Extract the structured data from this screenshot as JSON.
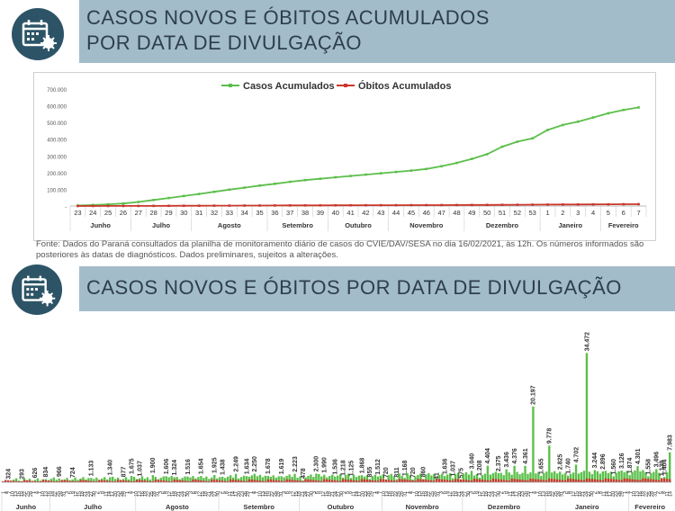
{
  "header": {
    "title_line1": "CASOS NOVOS E ÓBITOS ACUMULADOS",
    "title_line2": "POR DATA DE DIVULGAÇÃO",
    "icon": "calendar-virus-icon"
  },
  "section2": {
    "title": "CASOS NOVOS E ÓBITOS POR DATA DE DIVULGAÇÃO",
    "icon": "calendar-virus-icon"
  },
  "source_note": "Fonte: Dados do Paraná consultados da planilha de monitoramento diário de casos do CVIE/DAV/SESA no dia 16/02/2021, às 12h. Os números informados são posteriores às datas de diagnósticos. Dados preliminares, sujeitos a alterações.",
  "colors": {
    "green": "#5cbf4a",
    "red": "#c9372c",
    "band": "#a3bcca",
    "title": "#2d3f4a"
  },
  "chart_data": [
    {
      "type": "line",
      "legend_position": "top-center",
      "ylim": [
        0,
        700000
      ],
      "yticks": [
        "700.000",
        "600.000",
        "500.000",
        "400.000",
        "300.000",
        "200.000",
        "100.000",
        "-"
      ],
      "x": [
        "23",
        "24",
        "25",
        "26",
        "27",
        "28",
        "29",
        "30",
        "31",
        "32",
        "33",
        "34",
        "35",
        "36",
        "37",
        "38",
        "39",
        "40",
        "41",
        "42",
        "43",
        "44",
        "45",
        "46",
        "47",
        "48",
        "49",
        "50",
        "51",
        "52",
        "53",
        "1",
        "2",
        "3",
        "4",
        "5",
        "6",
        "7"
      ],
      "months": [
        {
          "label": "Junho",
          "from": 0,
          "to": 3
        },
        {
          "label": "Julho",
          "from": 4,
          "to": 7
        },
        {
          "label": "Agosto",
          "from": 8,
          "to": 12
        },
        {
          "label": "Setembro",
          "from": 13,
          "to": 16
        },
        {
          "label": "Outubro",
          "from": 17,
          "to": 20
        },
        {
          "label": "Novembro",
          "from": 21,
          "to": 25
        },
        {
          "label": "Dezembro",
          "from": 26,
          "to": 30
        },
        {
          "label": "Janeiro",
          "from": 31,
          "to": 34
        },
        {
          "label": "Fevereiro",
          "from": 35,
          "to": 37
        }
      ],
      "series": [
        {
          "name": "Casos Acumulados",
          "color": "#5cbf4a",
          "values": [
            3000,
            6000,
            10000,
            15000,
            24000,
            36000,
            48000,
            60000,
            72000,
            85000,
            98000,
            110000,
            122000,
            133000,
            145000,
            155000,
            163000,
            172000,
            180000,
            188000,
            196000,
            204000,
            212000,
            222000,
            238000,
            258000,
            282000,
            310000,
            355000,
            385000,
            405000,
            455000,
            485000,
            505000,
            530000,
            555000,
            575000,
            590000
          ]
        },
        {
          "name": "Óbitos Acumulados",
          "color": "#c9372c",
          "values": [
            100,
            200,
            300,
            400,
            600,
            800,
            1100,
            1400,
            1700,
            2000,
            2300,
            2600,
            2900,
            3200,
            3500,
            3800,
            4000,
            4200,
            4400,
            4600,
            4800,
            5000,
            5200,
            5400,
            5600,
            5900,
            6200,
            6600,
            7000,
            7500,
            8000,
            8500,
            9000,
            9400,
            9800,
            10200,
            10600,
            11000
          ]
        }
      ]
    },
    {
      "type": "bar",
      "ylim": [
        0,
        36000
      ],
      "months": [
        {
          "label": "Junho",
          "from": 0,
          "to": 17
        },
        {
          "label": "Julho",
          "from": 18,
          "to": 49
        },
        {
          "label": "Agosto",
          "from": 50,
          "to": 80
        },
        {
          "label": "Setembro",
          "from": 81,
          "to": 110
        },
        {
          "label": "Outubro",
          "from": 111,
          "to": 141
        },
        {
          "label": "Novembro",
          "from": 142,
          "to": 171
        },
        {
          "label": "Dezembro",
          "from": 172,
          "to": 202
        },
        {
          "label": "Janeiro",
          "from": 203,
          "to": 233
        },
        {
          "label": "Fevereiro",
          "from": 234,
          "to": 249
        }
      ],
      "day_ticks": [
        "1",
        "4",
        "7",
        "10",
        "13",
        "16",
        "19",
        "22",
        "25",
        "28",
        "1",
        "4",
        "7",
        "10",
        "13",
        "16",
        "19",
        "22",
        "25",
        "28",
        "31",
        "3",
        "6",
        "9",
        "12",
        "15",
        "18",
        "21",
        "24",
        "27",
        "30",
        "2",
        "5",
        "8",
        "11",
        "14",
        "17",
        "20",
        "23",
        "26",
        "29",
        "1",
        "4",
        "7",
        "10",
        "13",
        "16",
        "19",
        "22",
        "25",
        "28",
        "31",
        "3",
        "6",
        "9",
        "12",
        "15",
        "18",
        "21",
        "24",
        "27",
        "30",
        "3",
        "6",
        "9",
        "12",
        "15",
        "18",
        "21",
        "24",
        "27",
        "30",
        "2",
        "5",
        "8",
        "11",
        "14",
        "17",
        "20",
        "23",
        "26",
        "29",
        "1",
        "4",
        "7",
        "10",
        "13",
        "16",
        "19",
        "22",
        "25",
        "28",
        "31",
        "3",
        "6",
        "9",
        "12",
        "15",
        "18",
        "21",
        "24",
        "27",
        "30",
        "3",
        "6",
        "9",
        "12",
        "15",
        "18",
        "21",
        "24",
        "27",
        "30",
        "2",
        "5",
        "8",
        "11",
        "14",
        "17",
        "20",
        "23",
        "26",
        "29",
        "1",
        "4",
        "7",
        "10",
        "13",
        "16",
        "19",
        "22",
        "25",
        "28",
        "31",
        "1",
        "4",
        "7",
        "10",
        "13",
        "16",
        "19",
        "22",
        "25",
        "28",
        "31",
        "3",
        "6",
        "9",
        "12",
        "15",
        "18",
        "21",
        "24",
        "27",
        "30",
        "3",
        "6",
        "9",
        "12",
        "15",
        "18",
        "21",
        "24",
        "27",
        "30",
        "2",
        "5",
        "8",
        "11",
        "14",
        "17",
        "20",
        "23",
        "26",
        "29",
        "1",
        "4",
        "7",
        "10",
        "13",
        "16",
        "19",
        "22",
        "25",
        "28",
        "31",
        "3",
        "6",
        "9",
        "12",
        "15",
        "18",
        "21",
        "24",
        "27",
        "30",
        "2",
        "5",
        "8",
        "11",
        "14",
        "17",
        "20",
        "23",
        "26",
        "29",
        "1",
        "4",
        "7",
        "10",
        "13",
        "16",
        "19",
        "22",
        "25",
        "28",
        "31",
        "2",
        "5",
        "8",
        "11",
        "14"
      ],
      "series_names": [
        "Casos Novos",
        "Óbitos"
      ],
      "labeled_values": [
        {
          "i": 2,
          "v": "324"
        },
        {
          "i": 8,
          "v": "293"
        },
        {
          "i": 14,
          "v": "626"
        },
        {
          "i": 20,
          "v": "834"
        },
        {
          "i": 26,
          "v": "966"
        },
        {
          "i": 32,
          "v": "724"
        },
        {
          "i": 40,
          "v": "1.133"
        },
        {
          "i": 48,
          "v": "1.340"
        },
        {
          "i": 54,
          "v": "877"
        },
        {
          "i": 58,
          "v": "1.675"
        },
        {
          "i": 62,
          "v": "1.037"
        },
        {
          "i": 68,
          "v": "1.900"
        },
        {
          "i": 74,
          "v": "1.606"
        },
        {
          "i": 78,
          "v": "1.324"
        },
        {
          "i": 84,
          "v": "1.516"
        },
        {
          "i": 90,
          "v": "1.654"
        },
        {
          "i": 96,
          "v": "1.925"
        },
        {
          "i": 100,
          "v": "1.438"
        },
        {
          "i": 106,
          "v": "2.249"
        },
        {
          "i": 110,
          "v": "1.634"
        },
        {
          "i": 114,
          "v": "2.250"
        },
        {
          "i": 120,
          "v": "1.678"
        },
        {
          "i": 126,
          "v": "1.619"
        },
        {
          "i": 132,
          "v": "2.223"
        },
        {
          "i": 136,
          "v": "478"
        },
        {
          "i": 142,
          "v": "2.300"
        },
        {
          "i": 146,
          "v": "1.990"
        },
        {
          "i": 150,
          "v": "1.536"
        },
        {
          "i": 154,
          "v": "1.218"
        },
        {
          "i": 158,
          "v": "1.125"
        },
        {
          "i": 162,
          "v": "1.868"
        },
        {
          "i": 166,
          "v": "855"
        },
        {
          "i": 170,
          "v": "1.512"
        },
        {
          "i": 174,
          "v": "720"
        },
        {
          "i": 178,
          "v": "811"
        },
        {
          "i": 182,
          "v": "1.168"
        },
        {
          "i": 186,
          "v": "720"
        },
        {
          "i": 190,
          "v": "860"
        },
        {
          "i": 196,
          "v": "41"
        },
        {
          "i": 200,
          "v": "1.636"
        },
        {
          "i": 204,
          "v": "1.037"
        },
        {
          "i": 208,
          "v": "575"
        },
        {
          "i": 212,
          "v": "3.040"
        },
        {
          "i": 216,
          "v": "1.208"
        },
        {
          "i": 220,
          "v": "4.404"
        },
        {
          "i": 224,
          "v": "2.375"
        },
        {
          "i": 228,
          "v": "3.436"
        },
        {
          "i": 232,
          "v": "4.376"
        },
        {
          "i": 236,
          "v": "4.361"
        },
        {
          "i": 240,
          "v": "20.197"
        },
        {
          "i": 244,
          "v": "1.655"
        },
        {
          "i": 248,
          "v": "9.778"
        },
        {
          "i": 252,
          "v": "2.825"
        },
        {
          "i": 256,
          "v": "1.740"
        },
        {
          "i": 260,
          "v": "4.702"
        },
        {
          "i": 264,
          "v": "34.472"
        },
        {
          "i": 268,
          "v": "3.244"
        },
        {
          "i": 272,
          "v": "2.896"
        },
        {
          "i": 276,
          "v": "1.560"
        },
        {
          "i": 280,
          "v": "3.126"
        },
        {
          "i": 284,
          "v": "1.874"
        },
        {
          "i": 288,
          "v": "4.301"
        },
        {
          "i": 292,
          "v": "1.558"
        },
        {
          "i": 296,
          "v": "3.496"
        },
        {
          "i": 298,
          "v": "1.139"
        },
        {
          "i": 300,
          "v": "1.404"
        },
        {
          "i": 302,
          "v": "7.983"
        }
      ]
    }
  ]
}
